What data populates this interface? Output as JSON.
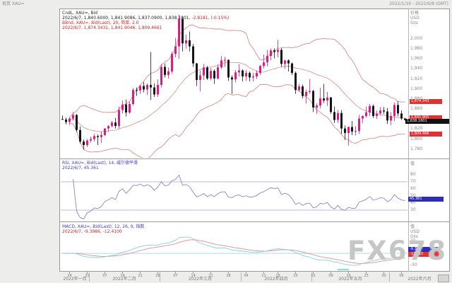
{
  "window": {
    "title_left": "现货 XAU=",
    "title_right": "2022/1/19 - 2022/6/8 (GMT)"
  },
  "watermark": "FX678",
  "panels": {
    "price": {
      "header1": "CndL, XAU=, Bid",
      "header2": "2022/6/7, 1,840.6000, 1,841.9086, 1,837.0900, 1,838.1801,",
      "header2_red": " -2.8181, (-0.15%)",
      "header3": "BBnd, XAU=, Bid(Last), 20, 简单, 2.0",
      "header4": "2022/6/7, 1,874.3431, 1,841.9046, 1,809.4661",
      "axis_title": [
        "价格",
        "USD",
        "Ozs"
      ],
      "ticks": [
        {
          "v": 2000,
          "t": "2,000"
        },
        {
          "v": 1980,
          "t": "1,980"
        },
        {
          "v": 1960,
          "t": "1,960"
        },
        {
          "v": 1940,
          "t": "1,940"
        },
        {
          "v": 1920,
          "t": "1,920"
        },
        {
          "v": 1900,
          "t": "1,900"
        },
        {
          "v": 1880,
          "t": "1,880"
        },
        {
          "v": 1860,
          "t": "1,860"
        },
        {
          "v": 1840,
          "t": "1,840"
        },
        {
          "v": 1820,
          "t": "1,820"
        },
        {
          "v": 1800,
          "t": "1,800"
        },
        {
          "v": 1780,
          "t": "1,780"
        }
      ],
      "boxes": [
        {
          "v": 1874.3431,
          "t": "1,874.343",
          "c": "red"
        },
        {
          "v": 1841.9046,
          "t": "1,841.905",
          "c": "red"
        },
        {
          "v": 1838.1801,
          "t": "1,838.1801",
          "c": "black"
        },
        {
          "v": 1809.4661,
          "t": "1,809.466",
          "c": "red"
        }
      ]
    },
    "rsi": {
      "header1": "RSI, XAU=, Bid(Last), 14, 威尔德平滑",
      "header2": "2022/6/7, 45.361",
      "axis_title": "值",
      "ticks": [
        {
          "v": 80,
          "t": "80"
        },
        {
          "v": 70,
          "t": "70"
        },
        {
          "v": 60,
          "t": "60"
        },
        {
          "v": 50,
          "t": "50"
        },
        {
          "v": 40,
          "t": "40"
        },
        {
          "v": 30,
          "t": "30"
        }
      ],
      "box": {
        "v": 45.361,
        "t": "45.361"
      }
    },
    "macd": {
      "header1": "MACD, XAU=, Bid(Last), 12, 26, 9, 指数",
      "header2": "2022/6/7, -9.3986, -12.4100",
      "axis_title": [
        "值",
        "USD",
        "Ozs"
      ],
      "ticks": [
        {
          "v": 30,
          "t": "30"
        },
        {
          "v": 0,
          "t": "0"
        },
        {
          "v": -30,
          "t": "-30"
        }
      ],
      "boxes": [
        {
          "t": "-9.399",
          "c": "blue"
        },
        {
          "t": "-12.410",
          "c": "red"
        }
      ]
    }
  },
  "x_axis": {
    "months": [
      {
        "label": "2022年一月",
        "days": 8
      },
      {
        "label": "2022年二月",
        "days": 20
      },
      {
        "label": "2022年三月",
        "days": 23
      },
      {
        "label": "2022年四月",
        "days": 20
      },
      {
        "label": "2022年五月",
        "days": 22
      },
      {
        "label": "2022年六月",
        "days": 5
      }
    ],
    "week_ticks": [
      {
        "i": 2,
        "t": "24"
      },
      {
        "i": 7,
        "t": "31"
      },
      {
        "i": 12,
        "t": "07"
      },
      {
        "i": 17,
        "t": "14"
      },
      {
        "i": 22,
        "t": "21"
      },
      {
        "i": 27,
        "t": "28"
      },
      {
        "i": 32,
        "t": "07"
      },
      {
        "i": 37,
        "t": "14"
      },
      {
        "i": 42,
        "t": "21"
      },
      {
        "i": 47,
        "t": "28"
      },
      {
        "i": 52,
        "t": "04"
      },
      {
        "i": 57,
        "t": "11"
      },
      {
        "i": 61,
        "t": "18"
      },
      {
        "i": 66,
        "t": "25"
      },
      {
        "i": 71,
        "t": "02"
      },
      {
        "i": 76,
        "t": "09"
      },
      {
        "i": 81,
        "t": "16"
      },
      {
        "i": 86,
        "t": "23"
      },
      {
        "i": 91,
        "t": "30"
      },
      {
        "i": 96,
        "t": "06"
      }
    ]
  },
  "chart_data": {
    "type": "candlestick",
    "instrument": "XAU=",
    "interval": "daily",
    "title": "现货 XAU= 日线 + 布林带 / RSI / MACD",
    "price_range": [
      1764,
      2055
    ],
    "candles": [
      [
        1840,
        1847,
        1838,
        1839
      ],
      [
        1839,
        1843,
        1829,
        1834
      ],
      [
        1834,
        1844,
        1828,
        1841
      ],
      [
        1841,
        1854,
        1837,
        1848
      ],
      [
        1848,
        1850,
        1814,
        1818
      ],
      [
        1818,
        1825,
        1791,
        1795
      ],
      [
        1795,
        1799,
        1779,
        1788
      ],
      [
        1788,
        1800,
        1784,
        1797
      ],
      [
        1797,
        1805,
        1793,
        1800
      ],
      [
        1800,
        1810,
        1795,
        1806
      ],
      [
        1806,
        1809,
        1788,
        1804
      ],
      [
        1804,
        1815,
        1792,
        1808
      ],
      [
        1808,
        1822,
        1806,
        1821
      ],
      [
        1821,
        1828,
        1815,
        1826
      ],
      [
        1826,
        1836,
        1823,
        1833
      ],
      [
        1833,
        1842,
        1821,
        1826
      ],
      [
        1826,
        1865,
        1821,
        1858
      ],
      [
        1858,
        1877,
        1851,
        1869
      ],
      [
        1869,
        1879,
        1845,
        1853
      ],
      [
        1853,
        1875,
        1850,
        1870
      ],
      [
        1870,
        1902,
        1867,
        1898
      ],
      [
        1898,
        1903,
        1886,
        1897
      ],
      [
        1897,
        1908,
        1890,
        1906
      ],
      [
        1906,
        1914,
        1893,
        1899
      ],
      [
        1899,
        1911,
        1888,
        1908
      ],
      [
        1908,
        1974,
        1878,
        1903
      ],
      [
        1903,
        1911,
        1884,
        1889
      ],
      [
        1889,
        1919,
        1884,
        1908
      ],
      [
        1908,
        1950,
        1903,
        1944
      ],
      [
        1944,
        1951,
        1923,
        1928
      ],
      [
        1928,
        1943,
        1921,
        1935
      ],
      [
        1935,
        1974,
        1930,
        1970
      ],
      [
        1970,
        2002,
        1963,
        1985
      ],
      [
        1985,
        2048,
        1960,
        2040
      ],
      [
        2040,
        2044,
        1975,
        1991
      ],
      [
        1991,
        2009,
        1980,
        1997
      ],
      [
        1997,
        2015,
        1975,
        1985
      ],
      [
        1985,
        1990,
        1944,
        1951
      ],
      [
        1951,
        1952,
        1906,
        1918
      ],
      [
        1918,
        1937,
        1895,
        1927
      ],
      [
        1927,
        1950,
        1918,
        1943
      ],
      [
        1943,
        1946,
        1918,
        1921
      ],
      [
        1921,
        1942,
        1917,
        1936
      ],
      [
        1936,
        1939,
        1910,
        1921
      ],
      [
        1921,
        1949,
        1919,
        1943
      ],
      [
        1943,
        1966,
        1940,
        1957
      ],
      [
        1957,
        1964,
        1944,
        1958
      ],
      [
        1958,
        1959,
        1916,
        1923
      ],
      [
        1923,
        1927,
        1890,
        1919
      ],
      [
        1919,
        1938,
        1913,
        1933
      ],
      [
        1933,
        1949,
        1925,
        1937
      ],
      [
        1937,
        1939,
        1915,
        1925
      ],
      [
        1925,
        1938,
        1916,
        1932
      ],
      [
        1932,
        1935,
        1915,
        1923
      ],
      [
        1923,
        1932,
        1915,
        1925
      ],
      [
        1925,
        1937,
        1920,
        1932
      ],
      [
        1932,
        1948,
        1928,
        1946
      ],
      [
        1946,
        1969,
        1941,
        1953
      ],
      [
        1953,
        1978,
        1945,
        1966
      ],
      [
        1966,
        1981,
        1957,
        1977
      ],
      [
        1977,
        1981,
        1961,
        1974
      ],
      [
        1974,
        1998,
        1963,
        1978
      ],
      [
        1978,
        1982,
        1944,
        1950
      ],
      [
        1950,
        1958,
        1940,
        1957
      ],
      [
        1957,
        1959,
        1935,
        1951
      ],
      [
        1951,
        1953,
        1928,
        1932
      ],
      [
        1932,
        1935,
        1890,
        1898
      ],
      [
        1898,
        1910,
        1894,
        1905
      ],
      [
        1905,
        1909,
        1881,
        1886
      ],
      [
        1886,
        1899,
        1871,
        1894
      ],
      [
        1894,
        1920,
        1890,
        1896
      ],
      [
        1896,
        1898,
        1854,
        1863
      ],
      [
        1863,
        1871,
        1850,
        1867
      ],
      [
        1867,
        1902,
        1861,
        1881
      ],
      [
        1881,
        1910,
        1872,
        1877
      ],
      [
        1877,
        1894,
        1866,
        1883
      ],
      [
        1883,
        1884,
        1850,
        1854
      ],
      [
        1854,
        1865,
        1832,
        1838
      ],
      [
        1838,
        1858,
        1832,
        1852
      ],
      [
        1852,
        1858,
        1810,
        1821
      ],
      [
        1821,
        1827,
        1798,
        1812
      ],
      [
        1812,
        1825,
        1787,
        1824
      ],
      [
        1824,
        1836,
        1808,
        1815
      ],
      [
        1815,
        1826,
        1807,
        1816
      ],
      [
        1816,
        1848,
        1810,
        1841
      ],
      [
        1841,
        1847,
        1832,
        1846
      ],
      [
        1846,
        1865,
        1843,
        1853
      ],
      [
        1853,
        1870,
        1846,
        1866
      ],
      [
        1866,
        1869,
        1842,
        1846
      ],
      [
        1846,
        1857,
        1840,
        1851
      ],
      [
        1851,
        1864,
        1848,
        1857
      ],
      [
        1857,
        1864,
        1850,
        1855
      ],
      [
        1855,
        1862,
        1830,
        1837
      ],
      [
        1837,
        1854,
        1828,
        1846
      ],
      [
        1846,
        1873,
        1836,
        1868
      ],
      [
        1868,
        1875,
        1845,
        1851
      ],
      [
        1851,
        1857,
        1838,
        1841
      ],
      [
        1841,
        1842,
        1837,
        1838
      ]
    ],
    "indicators": {
      "bollinger": {
        "period": 20,
        "stdev": 2.0,
        "last_upper": 1874.3431,
        "last_middle": 1841.9046,
        "last_lower": 1809.4661
      },
      "rsi": {
        "period": 14,
        "method": "威尔德平滑",
        "last": 45.361,
        "range": [
          19,
          101
        ],
        "ref": [
          70,
          30
        ]
      },
      "macd": {
        "fast": 12,
        "slow": 26,
        "signal": 9,
        "type": "指数",
        "last": -9.3986,
        "last_signal": -12.41,
        "range": [
          -35,
          74
        ]
      }
    },
    "colors": {
      "bull": "#e3197d",
      "bear": "#151515",
      "band": "#d98c84",
      "rsi": "#8585d6",
      "rsi_ref": "#b9b9e8",
      "macd": "#7fd0e8",
      "macd_signal": "#e89090",
      "macd_zero": "#aadcf0"
    }
  }
}
